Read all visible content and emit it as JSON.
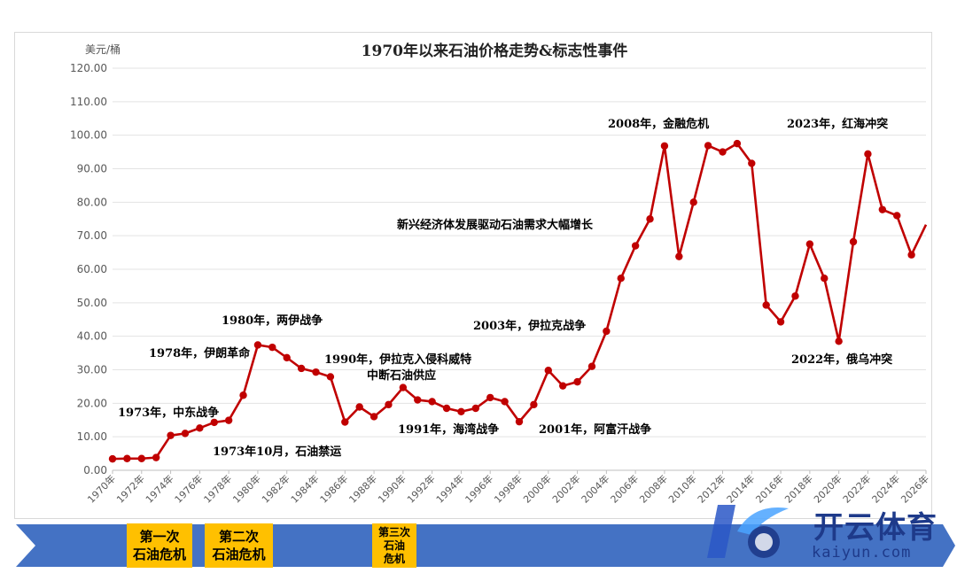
{
  "chart_data": {
    "type": "line",
    "title": "1970年以来石油价格走势&标志性事件",
    "ylabel": "美元/桶",
    "ylim": [
      0,
      120
    ],
    "yticks": [
      "0.00",
      "10.00",
      "20.00",
      "30.00",
      "40.00",
      "50.00",
      "60.00",
      "70.00",
      "80.00",
      "90.00",
      "100.00",
      "110.00",
      "120.00"
    ],
    "xticks": [
      "1970年",
      "1972年",
      "1974年",
      "1976年",
      "1978年",
      "1980年",
      "1982年",
      "1984年",
      "1986年",
      "1988年",
      "1990年",
      "1992年",
      "1994年",
      "1996年",
      "1998年",
      "2000年",
      "2002年",
      "2004年",
      "2006年",
      "2008年",
      "2010年",
      "2012年",
      "2014年",
      "2016年",
      "2018年",
      "2020年",
      "2022年",
      "2024年",
      "2026年"
    ],
    "grid": true,
    "line_color": "#c00000",
    "x": [
      1970,
      1971,
      1972,
      1973,
      1974,
      1975,
      1976,
      1977,
      1978,
      1979,
      1980,
      1981,
      1982,
      1983,
      1984,
      1985,
      1986,
      1987,
      1988,
      1989,
      1990,
      1991,
      1992,
      1993,
      1994,
      1995,
      1996,
      1997,
      1998,
      1999,
      2000,
      2001,
      2002,
      2003,
      2004,
      2005,
      2006,
      2007,
      2008,
      2009,
      2010,
      2011,
      2012,
      2013,
      2014,
      2015,
      2016,
      2017,
      2018,
      2019,
      2020,
      2021,
      2022,
      2023,
      2024,
      2025,
      2026
    ],
    "y": [
      3.4,
      3.5,
      3.5,
      3.8,
      10.4,
      11.0,
      12.6,
      14.3,
      14.9,
      22.4,
      37.4,
      36.7,
      33.6,
      30.4,
      29.3,
      27.9,
      14.4,
      18.9,
      16.0,
      19.6,
      24.7,
      21.0,
      20.5,
      18.5,
      17.5,
      18.5,
      21.7,
      20.5,
      14.5,
      19.6,
      29.8,
      25.2,
      26.4,
      31.0,
      41.5,
      57.3,
      67.0,
      75.0,
      96.8,
      63.8,
      80.0,
      96.9,
      95.0,
      97.5,
      91.6,
      49.3,
      44.3,
      52.0,
      67.5,
      57.3,
      38.5,
      68.2,
      94.4,
      77.8,
      76.0,
      64.3,
      73.3
    ],
    "annotations": [
      {
        "id": "a1973war",
        "text": "1973年，中东战争",
        "anchor_year": 1973
      },
      {
        "id": "a1973oct",
        "text": "1973年10月，石油禁运",
        "anchor_year": 1974
      },
      {
        "id": "a1978",
        "text": "1978年，伊朗革命",
        "anchor_year": 1979
      },
      {
        "id": "a1980",
        "text": "1980年，两伊战争",
        "anchor_year": 1980
      },
      {
        "id": "a1990",
        "text": "1990年，伊拉克入侵科威特",
        "anchor_year": 1990
      },
      {
        "id": "a1990b",
        "text": "中断石油供应",
        "anchor_year": 1990
      },
      {
        "id": "a1991",
        "text": "1991年，海湾战争",
        "anchor_year": 1991
      },
      {
        "id": "a2001",
        "text": "2001年，阿富汗战争",
        "anchor_year": 2001
      },
      {
        "id": "a2003",
        "text": "2003年，伊拉克战争",
        "anchor_year": 2003
      },
      {
        "id": "aemerging",
        "text": "新兴经济体发展驱动石油需求大幅增长",
        "anchor_year": 2006
      },
      {
        "id": "a2008",
        "text": "2008年，金融危机",
        "anchor_year": 2008
      },
      {
        "id": "a2022",
        "text": "2022年，俄乌冲突",
        "anchor_year": 2022
      },
      {
        "id": "a2023",
        "text": "2023年，红海冲突",
        "anchor_year": 2023
      }
    ]
  },
  "timeline": {
    "crises": [
      {
        "id": "crisis1",
        "label": "第一次\n石油危机"
      },
      {
        "id": "crisis2",
        "label": "第二次\n石油危机"
      },
      {
        "id": "crisis3",
        "label": "第三次\n石油\n危机"
      }
    ],
    "bar_color": "#4472c4",
    "box_color": "#ffc000"
  },
  "watermark": {
    "text": "开云体育",
    "sub": "kaiyun.com"
  }
}
